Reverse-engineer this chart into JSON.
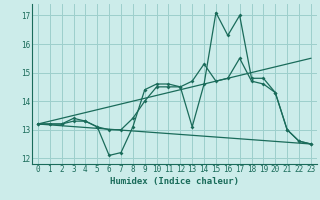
{
  "xlabel": "Humidex (Indice chaleur)",
  "xlim": [
    -0.5,
    23.5
  ],
  "ylim": [
    11.8,
    17.4
  ],
  "xticks": [
    0,
    1,
    2,
    3,
    4,
    5,
    6,
    7,
    8,
    9,
    10,
    11,
    12,
    13,
    14,
    15,
    16,
    17,
    18,
    19,
    20,
    21,
    22,
    23
  ],
  "yticks": [
    12,
    13,
    14,
    15,
    16,
    17
  ],
  "background_color": "#ccecea",
  "grid_color": "#9dcfcc",
  "line_color": "#1a6b5a",
  "line1_x": [
    0,
    1,
    2,
    3,
    4,
    5,
    6,
    7,
    8,
    9,
    10,
    11,
    12,
    13,
    14,
    15,
    16,
    17,
    18,
    19,
    20,
    21,
    22,
    23
  ],
  "line1_y": [
    13.2,
    13.2,
    13.2,
    13.3,
    13.3,
    13.1,
    12.1,
    12.2,
    13.1,
    14.4,
    14.6,
    14.6,
    14.5,
    13.1,
    14.6,
    17.1,
    16.3,
    17.0,
    14.8,
    14.8,
    14.3,
    13.0,
    12.6,
    12.5
  ],
  "line2_x": [
    0,
    1,
    2,
    3,
    4,
    5,
    6,
    7,
    8,
    9,
    10,
    11,
    12,
    13,
    14,
    15,
    16,
    17,
    18,
    19,
    20,
    21,
    22,
    23
  ],
  "line2_y": [
    13.2,
    13.2,
    13.2,
    13.4,
    13.3,
    13.1,
    13.0,
    13.0,
    13.4,
    14.0,
    14.5,
    14.5,
    14.5,
    14.7,
    15.3,
    14.7,
    14.8,
    15.5,
    14.7,
    14.6,
    14.3,
    13.0,
    12.6,
    12.5
  ],
  "line3_x": [
    0,
    23
  ],
  "line3_y": [
    13.2,
    15.5
  ],
  "line4_x": [
    0,
    23
  ],
  "line4_y": [
    13.2,
    12.5
  ],
  "xlabel_fontsize": 6.5,
  "tick_fontsize": 5.5
}
